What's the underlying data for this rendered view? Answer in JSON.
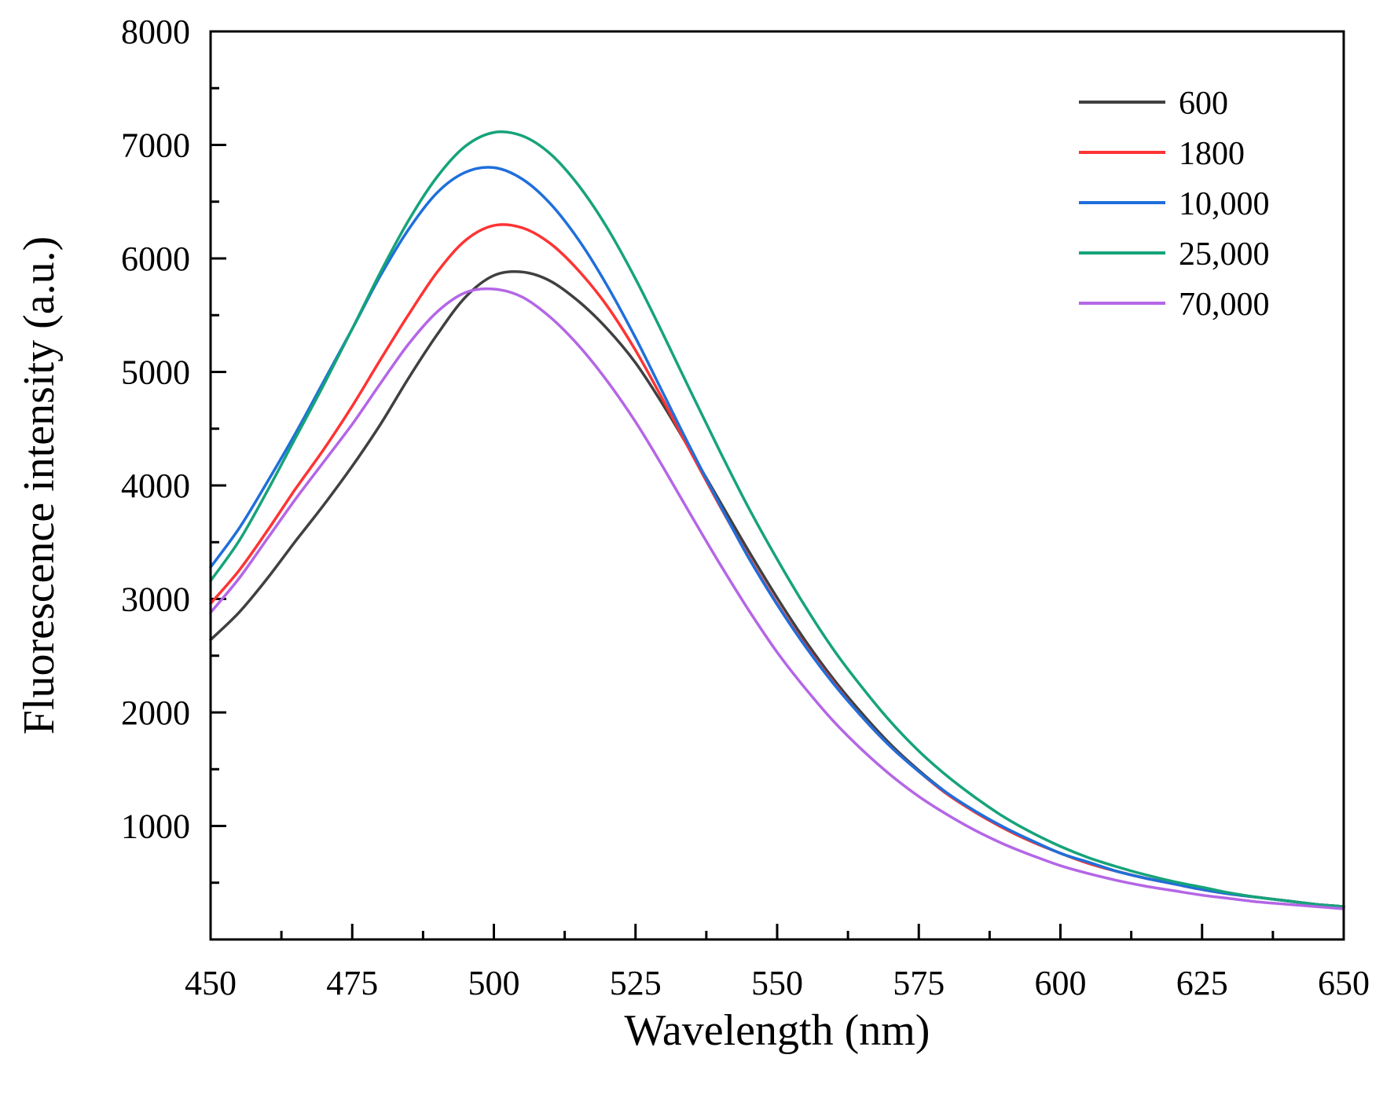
{
  "chart_data": {
    "type": "line",
    "title": "",
    "xlabel": "Wavelength (nm)",
    "ylabel": "Fluorescence intensity (a.u.)",
    "xlim": [
      450,
      650
    ],
    "ylim": [
      0,
      8000
    ],
    "grid": false,
    "legend_position": "top-right",
    "x_ticks": [
      450,
      475,
      500,
      525,
      550,
      575,
      600,
      625,
      650
    ],
    "x_tick_labels": [
      "450",
      "475",
      "500",
      "525",
      "550",
      "575",
      "600",
      "625",
      "650"
    ],
    "y_ticks": [
      1000,
      2000,
      3000,
      4000,
      5000,
      6000,
      7000,
      8000
    ],
    "y_tick_labels": [
      "1000",
      "2000",
      "3000",
      "4000",
      "5000",
      "6000",
      "7000",
      "8000"
    ],
    "x": [
      450,
      455,
      460,
      465,
      470,
      475,
      480,
      485,
      490,
      495,
      500,
      505,
      510,
      515,
      520,
      525,
      530,
      535,
      540,
      545,
      550,
      555,
      560,
      565,
      570,
      575,
      580,
      585,
      590,
      595,
      600,
      605,
      610,
      615,
      620,
      625,
      630,
      635,
      640,
      645,
      650
    ],
    "series": [
      {
        "name": "600",
        "color": "#404040",
        "values": [
          2640,
          2880,
          3180,
          3510,
          3830,
          4170,
          4540,
          4950,
          5330,
          5660,
          5850,
          5880,
          5800,
          5620,
          5380,
          5080,
          4700,
          4280,
          3850,
          3420,
          3010,
          2630,
          2290,
          1990,
          1720,
          1490,
          1290,
          1120,
          980,
          860,
          760,
          670,
          600,
          540,
          490,
          440,
          400,
          370,
          340,
          310,
          290
        ]
      },
      {
        "name": "1800",
        "color": "#ff3333",
        "values": [
          2960,
          3250,
          3600,
          3970,
          4320,
          4700,
          5110,
          5510,
          5880,
          6160,
          6290,
          6270,
          6130,
          5890,
          5580,
          5190,
          4740,
          4270,
          3810,
          3370,
          2960,
          2590,
          2260,
          1960,
          1700,
          1480,
          1280,
          1120,
          980,
          860,
          760,
          670,
          600,
          540,
          490,
          440,
          400,
          370,
          340,
          310,
          290
        ]
      },
      {
        "name": "10,000",
        "color": "#1f6fdb",
        "values": [
          3280,
          3620,
          4030,
          4460,
          4920,
          5380,
          5850,
          6260,
          6580,
          6760,
          6800,
          6700,
          6480,
          6160,
          5760,
          5300,
          4800,
          4300,
          3820,
          3360,
          2950,
          2580,
          2250,
          1960,
          1700,
          1480,
          1290,
          1130,
          990,
          870,
          760,
          680,
          600,
          540,
          490,
          440,
          400,
          370,
          340,
          310,
          290
        ]
      },
      {
        "name": "25,000",
        "color": "#16a37a",
        "values": [
          3160,
          3510,
          3950,
          4420,
          4890,
          5380,
          5880,
          6340,
          6720,
          6990,
          7110,
          7080,
          6920,
          6640,
          6270,
          5820,
          5320,
          4800,
          4290,
          3800,
          3350,
          2930,
          2550,
          2220,
          1920,
          1660,
          1440,
          1250,
          1080,
          940,
          820,
          720,
          640,
          570,
          510,
          460,
          410,
          370,
          340,
          310,
          290
        ]
      },
      {
        "name": "70,000",
        "color": "#b466e6",
        "values": [
          2880,
          3180,
          3530,
          3880,
          4210,
          4540,
          4900,
          5250,
          5530,
          5700,
          5730,
          5660,
          5480,
          5230,
          4920,
          4560,
          4150,
          3720,
          3300,
          2900,
          2530,
          2210,
          1920,
          1670,
          1450,
          1260,
          1100,
          960,
          840,
          740,
          650,
          580,
          520,
          470,
          430,
          390,
          360,
          330,
          310,
          290,
          270
        ]
      }
    ]
  }
}
